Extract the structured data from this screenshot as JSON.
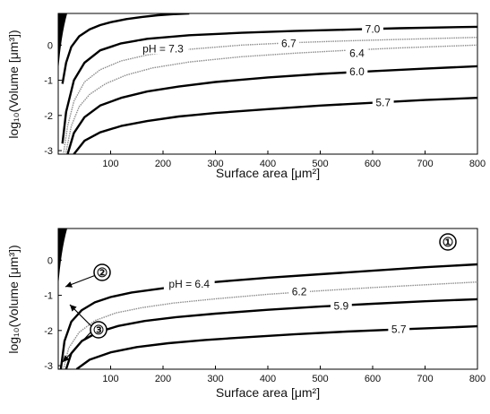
{
  "chart_data": [
    {
      "type": "line",
      "xlabel": "Surface area [μm²]",
      "ylabel": "log₁₀(Volume [μm³])",
      "xlim": [
        0,
        800
      ],
      "ylim": [
        -3.1,
        0.9
      ],
      "xticks": [
        "100",
        "200",
        "300",
        "400",
        "500",
        "600",
        "700",
        "800"
      ],
      "yticks": [
        "-3",
        "-2",
        "-1",
        "0"
      ],
      "grid": false,
      "series": [
        {
          "name": "pH = 7.3",
          "style": "thick-black",
          "x": [
            8,
            15,
            25,
            40,
            60,
            80,
            100,
            130,
            160,
            190,
            220,
            250
          ],
          "y": [
            -1.1,
            -0.5,
            -0.05,
            0.25,
            0.45,
            0.57,
            0.65,
            0.74,
            0.8,
            0.85,
            0.88,
            0.9
          ]
        },
        {
          "name": "7.0",
          "style": "thick-black",
          "x": [
            8,
            15,
            30,
            50,
            80,
            120,
            170,
            250,
            350,
            450,
            550,
            650,
            800
          ],
          "y": [
            -2.8,
            -1.9,
            -1.0,
            -0.5,
            -0.15,
            0.05,
            0.18,
            0.28,
            0.35,
            0.4,
            0.44,
            0.48,
            0.52
          ]
        },
        {
          "name": "6.7",
          "style": "thin-gray",
          "x": [
            10,
            18,
            30,
            50,
            80,
            120,
            170,
            250,
            350,
            450,
            550,
            650,
            800
          ],
          "y": [
            -3.1,
            -2.3,
            -1.6,
            -1.05,
            -0.7,
            -0.45,
            -0.28,
            -0.12,
            0.0,
            0.07,
            0.12,
            0.16,
            0.22
          ]
        },
        {
          "name": "6.4",
          "style": "thin-gray",
          "x": [
            14,
            25,
            40,
            60,
            90,
            130,
            180,
            250,
            350,
            450,
            550,
            650,
            800
          ],
          "y": [
            -3.1,
            -2.3,
            -1.75,
            -1.4,
            -1.1,
            -0.85,
            -0.65,
            -0.48,
            -0.33,
            -0.23,
            -0.15,
            -0.08,
            0.0
          ]
        },
        {
          "name": "6.0",
          "style": "thick-black",
          "x": [
            18,
            30,
            50,
            80,
            120,
            170,
            230,
            300,
            400,
            500,
            600,
            700,
            800
          ],
          "y": [
            -3.1,
            -2.5,
            -2.05,
            -1.72,
            -1.5,
            -1.32,
            -1.18,
            -1.05,
            -0.92,
            -0.82,
            -0.74,
            -0.67,
            -0.6
          ]
        },
        {
          "name": "5.7",
          "style": "thick-black",
          "x": [
            30,
            50,
            80,
            120,
            170,
            230,
            300,
            400,
            500,
            600,
            700,
            800
          ],
          "y": [
            -3.1,
            -2.72,
            -2.48,
            -2.3,
            -2.16,
            -2.03,
            -1.93,
            -1.82,
            -1.72,
            -1.64,
            -1.56,
            -1.5
          ]
        }
      ]
    },
    {
      "type": "line",
      "xlabel": "Surface area [μm²]",
      "ylabel": "log₁₀(Volume [μm³])",
      "xlim": [
        0,
        800
      ],
      "ylim": [
        -3.1,
        0.9
      ],
      "xticks": [
        "100",
        "200",
        "300",
        "400",
        "500",
        "600",
        "700",
        "800"
      ],
      "yticks": [
        "-3",
        "-2",
        "-1",
        "0"
      ],
      "grid": false,
      "series": [
        {
          "name": "pH = 6.4",
          "style": "thick-black",
          "x": [
            5,
            12,
            25,
            45,
            70,
            100,
            140,
            200,
            300,
            400,
            500,
            600,
            700,
            800
          ],
          "y": [
            -3.1,
            -2.3,
            -1.75,
            -1.42,
            -1.2,
            -1.05,
            -0.92,
            -0.8,
            -0.62,
            -0.5,
            -0.4,
            -0.3,
            -0.2,
            -0.12
          ]
        },
        {
          "name": "6.2",
          "style": "thin-gray",
          "x": [
            10,
            20,
            40,
            70,
            110,
            160,
            220,
            300,
            400,
            500,
            600,
            700,
            800
          ],
          "y": [
            -3.1,
            -2.5,
            -2.05,
            -1.72,
            -1.5,
            -1.35,
            -1.22,
            -1.1,
            -0.97,
            -0.87,
            -0.78,
            -0.7,
            -0.62
          ]
        },
        {
          "name": "5.9",
          "style": "thick-black",
          "x": [
            15,
            25,
            45,
            75,
            115,
            165,
            225,
            300,
            400,
            500,
            600,
            700,
            800
          ],
          "y": [
            -3.1,
            -2.65,
            -2.3,
            -2.05,
            -1.87,
            -1.73,
            -1.62,
            -1.52,
            -1.41,
            -1.32,
            -1.24,
            -1.17,
            -1.11
          ]
        },
        {
          "name": "5.7",
          "style": "thick-black",
          "x": [
            35,
            60,
            100,
            150,
            210,
            280,
            360,
            450,
            550,
            650,
            750,
            800
          ],
          "y": [
            -3.1,
            -2.83,
            -2.62,
            -2.47,
            -2.36,
            -2.27,
            -2.19,
            -2.11,
            -2.03,
            -1.97,
            -1.91,
            -1.88
          ]
        }
      ],
      "annotations": [
        "①",
        "②",
        "③"
      ]
    }
  ]
}
